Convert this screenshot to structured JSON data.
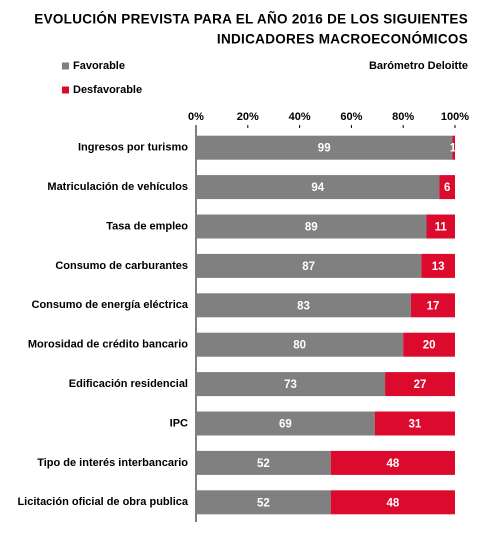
{
  "chart_data": {
    "type": "stacked-bar-horizontal",
    "title": [
      "EVOLUCIÓN PREVISTA PARA EL AÑO 2016 DE LOS SIGUIENTES",
      "INDICADORES MACROECONÓMICOS"
    ],
    "subtitle": "Barómetro Deloitte",
    "categories": [
      "Ingresos por turismo",
      "Matriculación de vehículos",
      "Tasa de empleo",
      "Consumo de carburantes",
      "Consumo de energía eléctrica",
      "Morosidad de crédito bancario",
      "Edificación residencial",
      "IPC",
      "Tipo de interés interbancario",
      "Licitación oficial de obra publica"
    ],
    "series": [
      {
        "name": "Favorable",
        "color": "#808080",
        "values": [
          99,
          94,
          89,
          87,
          83,
          80,
          73,
          69,
          52,
          52
        ]
      },
      {
        "name": "Desfavorable",
        "color": "#dc0b2e",
        "values": [
          1,
          6,
          11,
          13,
          17,
          20,
          27,
          31,
          48,
          48
        ]
      }
    ],
    "xlim": [
      0,
      100
    ],
    "xticks": [
      {
        "value": 0,
        "label": "0%"
      },
      {
        "value": 20,
        "label": "20%"
      },
      {
        "value": 40,
        "label": "40%"
      },
      {
        "value": 60,
        "label": "60%"
      },
      {
        "value": 80,
        "label": "80%"
      },
      {
        "value": 100,
        "label": "100%"
      }
    ],
    "legend": "top-left"
  }
}
